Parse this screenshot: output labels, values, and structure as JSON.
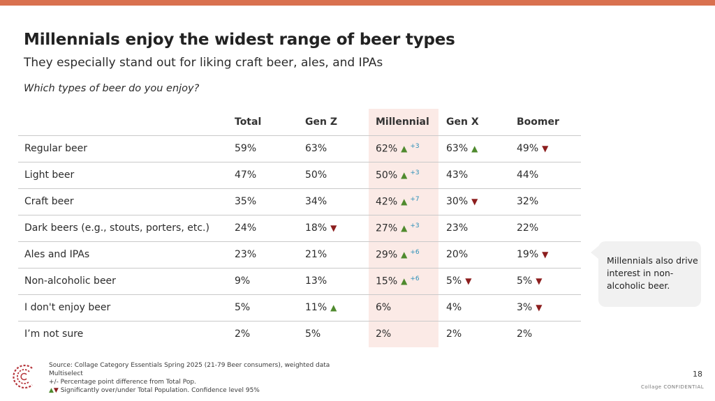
{
  "colors": {
    "accent_bar": "#d9714f",
    "highlight": "#fbeae6",
    "up": "#4f8a2e",
    "down": "#8c1e1e",
    "diff": "#2a8fb8"
  },
  "header": {
    "title": "Millennials enjoy the widest range of beer types",
    "subtitle": "They especially stand out for liking craft beer, ales, and IPAs",
    "question": "Which types of beer do you enjoy?"
  },
  "chart_data": {
    "type": "table",
    "columns": [
      "Total",
      "Gen Z",
      "Millennial",
      "Gen X",
      "Boomer"
    ],
    "highlight_column": "Millennial",
    "rows": [
      {
        "label": "Regular beer",
        "cells": [
          {
            "value": "59%"
          },
          {
            "value": "63%"
          },
          {
            "value": "62%",
            "sig": "up",
            "diff": "+3"
          },
          {
            "value": "63%",
            "sig": "up"
          },
          {
            "value": "49%",
            "sig": "down"
          }
        ]
      },
      {
        "label": "Light beer",
        "cells": [
          {
            "value": "47%"
          },
          {
            "value": "50%"
          },
          {
            "value": "50%",
            "sig": "up",
            "diff": "+3"
          },
          {
            "value": "43%"
          },
          {
            "value": "44%"
          }
        ]
      },
      {
        "label": "Craft beer",
        "cells": [
          {
            "value": "35%"
          },
          {
            "value": "34%"
          },
          {
            "value": "42%",
            "sig": "up",
            "diff": "+7"
          },
          {
            "value": "30%",
            "sig": "down"
          },
          {
            "value": "32%"
          }
        ]
      },
      {
        "label": "Dark beers (e.g., stouts, porters, etc.)",
        "cells": [
          {
            "value": "24%"
          },
          {
            "value": "18%",
            "sig": "down"
          },
          {
            "value": "27%",
            "sig": "up",
            "diff": "+3"
          },
          {
            "value": "23%"
          },
          {
            "value": "22%"
          }
        ]
      },
      {
        "label": "Ales and IPAs",
        "cells": [
          {
            "value": "23%"
          },
          {
            "value": "21%"
          },
          {
            "value": "29%",
            "sig": "up",
            "diff": "+6"
          },
          {
            "value": "20%"
          },
          {
            "value": "19%",
            "sig": "down"
          }
        ]
      },
      {
        "label": "Non-alcoholic beer",
        "cells": [
          {
            "value": "9%"
          },
          {
            "value": "13%"
          },
          {
            "value": "15%",
            "sig": "up",
            "diff": "+6"
          },
          {
            "value": "5%",
            "sig": "down"
          },
          {
            "value": "5%",
            "sig": "down"
          }
        ]
      },
      {
        "label": "I don't enjoy beer",
        "cells": [
          {
            "value": "5%"
          },
          {
            "value": "11%",
            "sig": "up"
          },
          {
            "value": "6%"
          },
          {
            "value": "4%"
          },
          {
            "value": "3%",
            "sig": "down"
          }
        ]
      },
      {
        "label": "I’m not sure",
        "cells": [
          {
            "value": "2%"
          },
          {
            "value": "5%"
          },
          {
            "value": "2%"
          },
          {
            "value": "2%"
          },
          {
            "value": "2%"
          }
        ]
      }
    ]
  },
  "callout": {
    "text": "Millennials also drive interest in non-alcoholic beer."
  },
  "footer": {
    "source": "Source: Collage Category Essentials Spring 2025 (21-79 Beer consumers), weighted data",
    "multiselect": "Multiselect",
    "diff_note": "+/- Percentage point difference from Total Pop.",
    "sig_note": "Significantly over/under Total Population. Confidence level 95%",
    "page_number": "18",
    "confidential": "Collage CONFIDENTIAL"
  },
  "icons": {
    "logo": "collage-logo-icon",
    "up": "triangle-up-icon",
    "down": "triangle-down-icon"
  }
}
